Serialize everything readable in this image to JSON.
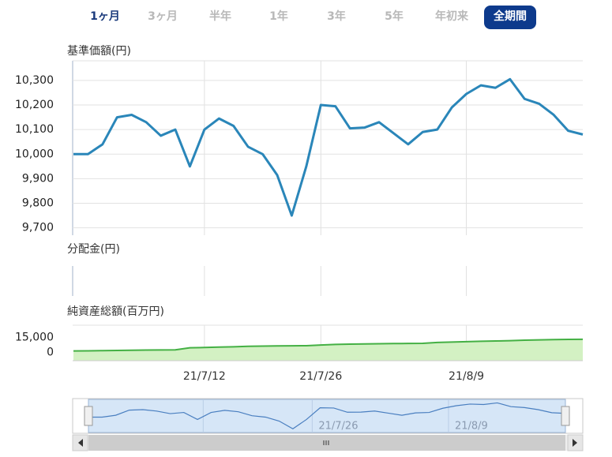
{
  "tabs": [
    "1ヶ月",
    "3ヶ月",
    "半年",
    "1年",
    "3年",
    "5年",
    "年初来",
    "全期間"
  ],
  "chart_data": [
    {
      "type": "line",
      "title": "基準価額(円)",
      "color": "#2a86b9",
      "categories": [
        null,
        null,
        null,
        null,
        null,
        null,
        null,
        null,
        null,
        "21/7/12",
        null,
        null,
        null,
        null,
        null,
        null,
        null,
        "21/7/26",
        null,
        null,
        null,
        null,
        null,
        null,
        null,
        null,
        null,
        "21/8/9",
        null,
        null,
        null,
        null,
        null,
        null,
        null,
        null
      ],
      "values": [
        10000,
        10000,
        10040,
        10150,
        10160,
        10130,
        10075,
        10100,
        9950,
        10100,
        10145,
        10115,
        10030,
        10000,
        9915,
        9750,
        9950,
        10200,
        10195,
        10105,
        10108,
        10130,
        10085,
        10040,
        10090,
        10100,
        10190,
        10245,
        10280,
        10270,
        10305,
        10225,
        10205,
        10160,
        10095,
        10080
      ],
      "ylim": [
        9670,
        10380
      ],
      "yticks": [
        {
          "value": 9700,
          "label": "9,700"
        },
        {
          "value": 9800,
          "label": "9,800"
        },
        {
          "value": 9900,
          "label": "9,900"
        },
        {
          "value": 10000,
          "label": "10,000"
        },
        {
          "value": 10100,
          "label": "10,100"
        },
        {
          "value": 10200,
          "label": "10,200"
        },
        {
          "value": 10300,
          "label": "10,300"
        }
      ],
      "grid": true
    },
    {
      "type": "empty",
      "title": "分配金(円)"
    },
    {
      "type": "area",
      "title": "純資産総額(百万円)",
      "color": "#44b044",
      "fill": "#d3f1c3",
      "categories": [
        null,
        null,
        null,
        null,
        null,
        null,
        null,
        null,
        null,
        "21/7/12",
        null,
        null,
        null,
        null,
        null,
        null,
        null,
        "21/7/26",
        null,
        null,
        null,
        null,
        null,
        null,
        null,
        null,
        null,
        "21/8/9",
        null,
        null,
        null,
        null,
        null,
        null,
        null,
        null
      ],
      "values": [
        1600,
        1700,
        1900,
        2100,
        2300,
        2500,
        2600,
        2700,
        4700,
        5000,
        5400,
        5700,
        6200,
        6400,
        6600,
        6700,
        6800,
        7500,
        8000,
        8300,
        8500,
        8700,
        8900,
        9000,
        9100,
        10000,
        10400,
        10800,
        11200,
        11400,
        11700,
        12200,
        12500,
        12800,
        13000,
        13100
      ],
      "ylim": [
        -8000,
        27000
      ],
      "yticks": [
        0,
        {
          "value": 15000,
          "label": "15,000"
        }
      ]
    }
  ]
}
